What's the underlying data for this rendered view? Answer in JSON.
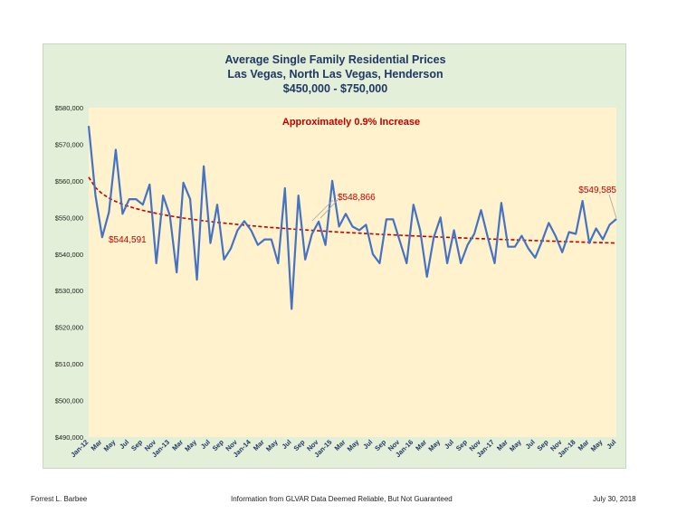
{
  "chart_data": {
    "type": "line",
    "title_lines": [
      "Average Single Family Residential Prices",
      "Las Vegas, North Las Vegas, Henderson",
      "$450,000 - $750,000"
    ],
    "annotation": "Approximately 0.9% Increase",
    "y_ticks": [
      "$490,000",
      "$500,000",
      "$510,000",
      "$520,000",
      "$530,000",
      "$540,000",
      "$550,000",
      "$560,000",
      "$570,000",
      "$580,000"
    ],
    "ylim": [
      490000,
      580000
    ],
    "x_labels": [
      "Jan-12",
      "Mar",
      "May",
      "Jul",
      "Sep",
      "Nov",
      "Jan-13",
      "Mar",
      "May",
      "Jul",
      "Sep",
      "Nov",
      "Jan-14",
      "Mar",
      "May",
      "Jul",
      "Sep",
      "Nov",
      "Jan-15",
      "Mar",
      "May",
      "Jul",
      "Sep",
      "Nov",
      "Jan-16",
      "Mar",
      "May",
      "Jul",
      "Sep",
      "Nov",
      "Jan-17",
      "Mar",
      "May",
      "Jul",
      "Sep",
      "Nov",
      "Jan-18",
      "Mar",
      "May",
      "Jul"
    ],
    "series": [
      {
        "values": [
          575000,
          556000,
          544600,
          551500,
          568500,
          551000,
          555000,
          555000,
          553500,
          559000,
          537500,
          556000,
          550500,
          535000,
          559500,
          555000,
          533000,
          564000,
          543000,
          553500,
          538500,
          541500,
          546500,
          549000,
          546500,
          542500,
          544000,
          544000,
          537500,
          558000,
          525000,
          556000,
          538500,
          545500,
          548866,
          542500,
          560000,
          547500,
          551000,
          547500,
          546500,
          548000,
          540000,
          537500,
          549500,
          549500,
          543500,
          537500,
          553500,
          546500,
          533800,
          544500,
          550000,
          537500,
          546500,
          537500,
          542500,
          545500,
          552000,
          544500,
          537500,
          554000,
          542000,
          542000,
          545000,
          541500,
          539000,
          543500,
          548500,
          545000,
          540500,
          546000,
          545500,
          554500,
          543000,
          547000,
          544000,
          548000,
          549585
        ]
      }
    ],
    "trendline": {
      "type": "logarithmic",
      "start_value": 561000,
      "end_value": 543000
    },
    "callouts": [
      {
        "label": "$544,591"
      },
      {
        "label": "$548,866"
      },
      {
        "label": "$549,585"
      }
    ],
    "colors": {
      "line": "#4472c4",
      "trend": "#c00000",
      "plot_bg": "#fff2cc",
      "frame_bg": "#e3efd9",
      "title": "#1f3864",
      "annotation": "#c00000"
    }
  },
  "footer": {
    "left": "Forrest L. Barbee",
    "center": "Information  from GLVAR Data Deemed Reliable, But Not Guaranteed",
    "right": "July 30, 2018"
  }
}
